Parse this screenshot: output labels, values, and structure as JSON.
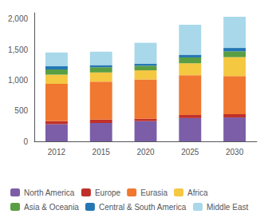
{
  "chart_data": {
    "type": "bar",
    "stacked": true,
    "categories": [
      "2012",
      "2015",
      "2020",
      "2025",
      "2030"
    ],
    "series": [
      {
        "name": "North America",
        "color": "#7B5EA7",
        "values": [
          280,
          300,
          330,
          380,
          390
        ]
      },
      {
        "name": "Europe",
        "color": "#C0302A",
        "values": [
          50,
          55,
          40,
          50,
          55
        ]
      },
      {
        "name": "Eurasia",
        "color": "#F07830",
        "values": [
          610,
          620,
          640,
          650,
          620
        ]
      },
      {
        "name": "Africa",
        "color": "#F5C842",
        "values": [
          150,
          150,
          150,
          195,
          310
        ]
      },
      {
        "name": "Asia & Oceania",
        "color": "#5A9E44",
        "values": [
          85,
          85,
          75,
          95,
          95
        ]
      },
      {
        "name": "Central & South America",
        "color": "#2477B3",
        "values": [
          50,
          35,
          35,
          45,
          55
        ]
      },
      {
        "name": "Middle East",
        "color": "#A8D8EA",
        "values": [
          225,
          220,
          340,
          490,
          510
        ]
      }
    ],
    "ylim": [
      0,
      2100
    ],
    "yticks": [
      0,
      500,
      {
        "value": 1000,
        "label": "1,000"
      },
      {
        "value": 1500,
        "label": "1,500"
      },
      {
        "value": 2000,
        "label": "2,000"
      }
    ],
    "grid": false,
    "legend": "bottom"
  }
}
